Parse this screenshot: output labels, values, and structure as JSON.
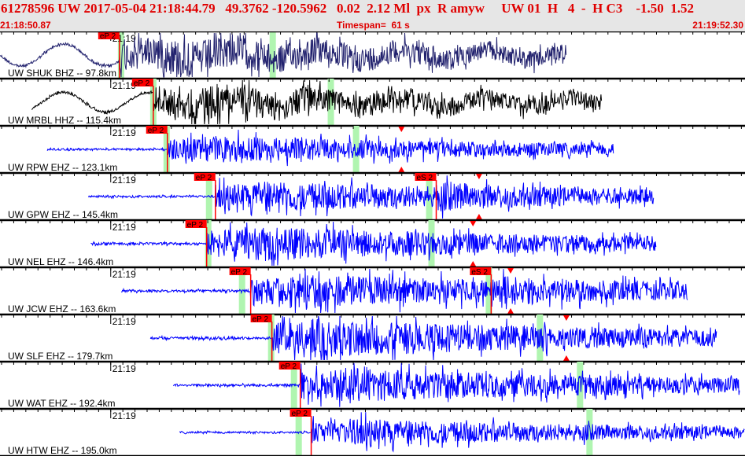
{
  "header": {
    "title": "61278596 UW 2017-05-04 21:18:44.79   49.3762 -120.5962   0.02  2.12 Ml  px  R amyw     UW 01  H   4  -  H C3    -1.50  1.52",
    "start_time": "21:18:50.87",
    "timespan_label": "Timespan=  61 s",
    "end_time": "21:19:52.30"
  },
  "axis": {
    "window_seconds": 61.43,
    "minute_mark_label": "21:19",
    "minute_mark_seconds": 9.13
  },
  "colors": {
    "pick": "#ff0000",
    "theoretical": "#b0f5b0",
    "trace_default": "#0000ff"
  },
  "stations": [
    {
      "label": "UW SHUK BHZ -- 97.8km",
      "color": "#22226e",
      "rec": [
        0,
        46.7
      ],
      "picks": [
        {
          "label": "eP 2",
          "t": 9.85
        }
      ],
      "theory": [
        9.98,
        22.49
      ],
      "amp": 1.0,
      "lowfreq": true,
      "markers": []
    },
    {
      "label": "UW MRBL HHZ -- 115.4km",
      "color": "#000000",
      "rec": [
        2.6,
        49.6
      ],
      "picks": [
        {
          "label": "eP 2",
          "t": 12.64
        }
      ],
      "theory": [
        12.64,
        27.28
      ],
      "amp": 0.9,
      "lowfreq": true,
      "markers": []
    },
    {
      "label": "UW RPW EHZ -- 123.1km",
      "color": "#0000ff",
      "rec": [
        3.9,
        50.6
      ],
      "picks": [
        {
          "label": "eP 2",
          "t": 13.8
        }
      ],
      "theory": [
        13.74,
        29.36
      ],
      "amp": 0.7,
      "lowfreq": false,
      "markers": [
        33.1
      ]
    },
    {
      "label": "UW GPW EHZ -- 145.4km",
      "color": "#0000ff",
      "rec": [
        7.3,
        53.9
      ],
      "picks": [
        {
          "label": "eP 2",
          "t": 17.76
        },
        {
          "label": "eS 2",
          "t": 35.97
        }
      ],
      "theory": [
        17.24,
        35.39
      ],
      "amp": 0.8,
      "lowfreq": false,
      "markers": [
        39.5
      ]
    },
    {
      "label": "UW NEL EHZ -- 146.4km",
      "color": "#0000ff",
      "rec": [
        7.5,
        54.1
      ],
      "picks": [
        {
          "label": "eP 2",
          "t": 17.04
        }
      ],
      "theory": [
        17.17,
        35.58
      ],
      "amp": 0.9,
      "lowfreq": false,
      "markers": [
        39.0
      ]
    },
    {
      "label": "UW JCW EHZ -- 163.6km",
      "color": "#0000ff",
      "rec": [
        10.0,
        56.7
      ],
      "picks": [
        {
          "label": "eP 2",
          "t": 20.67
        },
        {
          "label": "eS 2",
          "t": 40.5
        }
      ],
      "theory": [
        19.96,
        40.31
      ],
      "amp": 0.9,
      "lowfreq": false,
      "markers": [
        42.1
      ]
    },
    {
      "label": "UW SLF EHZ -- 179.7km",
      "color": "#0000ff",
      "rec": [
        12.4,
        59.1
      ],
      "picks": [
        {
          "label": "eP 2",
          "t": 22.42
        }
      ],
      "theory": [
        22.36,
        44.52
      ],
      "amp": 1.0,
      "lowfreq": false,
      "markers": [
        46.7
      ]
    },
    {
      "label": "UW WAT EHZ -- 192.4km",
      "color": "#0000ff",
      "rec": [
        14.3,
        61.0
      ],
      "picks": [
        {
          "label": "eP 2",
          "t": 24.76
        }
      ],
      "theory": [
        24.24,
        47.83
      ],
      "amp": 0.9,
      "lowfreq": false,
      "markers": []
    },
    {
      "label": "UW HTW EHZ -- 195.0km",
      "color": "#0000ff",
      "rec": [
        14.8,
        61.43
      ],
      "picks": [
        {
          "label": "eP 2",
          "t": 25.66
        }
      ],
      "theory": [
        24.63,
        48.61
      ],
      "amp": 0.7,
      "lowfreq": false,
      "markers": []
    }
  ]
}
